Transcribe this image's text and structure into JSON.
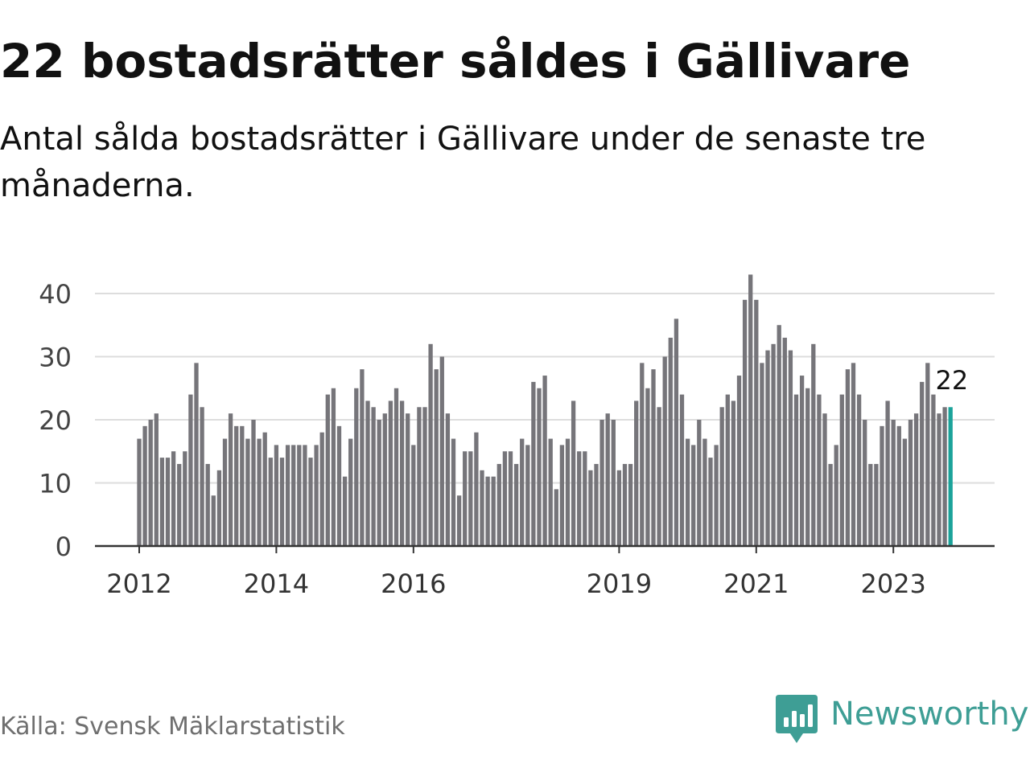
{
  "title": "22 bostadsrätter såldes i Gällivare",
  "subtitle": "Antal sålda bostadsrätter i Gällivare under de senaste tre månaderna.",
  "source": "Källa: Svensk Mäklarstatistik",
  "brand": {
    "name": "Newsworthy",
    "icon": "newsworthy-bar-chart-icon"
  },
  "colors": {
    "bar": "#76757a",
    "highlight": "#1ba39a",
    "grid": "#dddddd",
    "axis": "#333333",
    "brand": "#3e9e95"
  },
  "chart_data": {
    "type": "bar",
    "title": "22 bostadsrätter såldes i Gällivare",
    "subtitle": "Antal sålda bostadsrätter i Gällivare under de senaste tre månaderna.",
    "xlabel": "",
    "ylabel": "",
    "ylim": [
      0,
      45
    ],
    "yticks": [
      0,
      10,
      20,
      30,
      40
    ],
    "grid": true,
    "x_start": "2012-01",
    "x_ticks": [
      {
        "label": "2012",
        "index": 0
      },
      {
        "label": "2014",
        "index": 24
      },
      {
        "label": "2016",
        "index": 48
      },
      {
        "label": "2019",
        "index": 84
      },
      {
        "label": "2021",
        "index": 108
      },
      {
        "label": "2023",
        "index": 132
      }
    ],
    "values": [
      17,
      19,
      20,
      21,
      14,
      14,
      15,
      13,
      15,
      24,
      29,
      22,
      13,
      8,
      12,
      17,
      21,
      19,
      19,
      17,
      20,
      17,
      18,
      14,
      16,
      14,
      16,
      16,
      16,
      16,
      14,
      16,
      18,
      24,
      25,
      19,
      11,
      17,
      25,
      28,
      23,
      22,
      20,
      21,
      23,
      25,
      23,
      21,
      16,
      22,
      22,
      32,
      28,
      30,
      21,
      17,
      8,
      15,
      15,
      18,
      12,
      11,
      11,
      13,
      15,
      15,
      13,
      17,
      16,
      26,
      25,
      27,
      17,
      9,
      16,
      17,
      23,
      15,
      15,
      12,
      13,
      20,
      21,
      20,
      12,
      13,
      13,
      23,
      29,
      25,
      28,
      22,
      30,
      33,
      36,
      24,
      17,
      16,
      20,
      17,
      14,
      16,
      22,
      24,
      23,
      27,
      39,
      43,
      39,
      29,
      31,
      32,
      35,
      33,
      31,
      24,
      27,
      25,
      32,
      24,
      21,
      13,
      16,
      24,
      28,
      29,
      24,
      20,
      13,
      13,
      19,
      23,
      20,
      19,
      17,
      20,
      21,
      26,
      29,
      24,
      21,
      22,
      22
    ],
    "highlight_index": 142,
    "annotation": {
      "label": "22",
      "index": 142,
      "value": 22
    }
  }
}
